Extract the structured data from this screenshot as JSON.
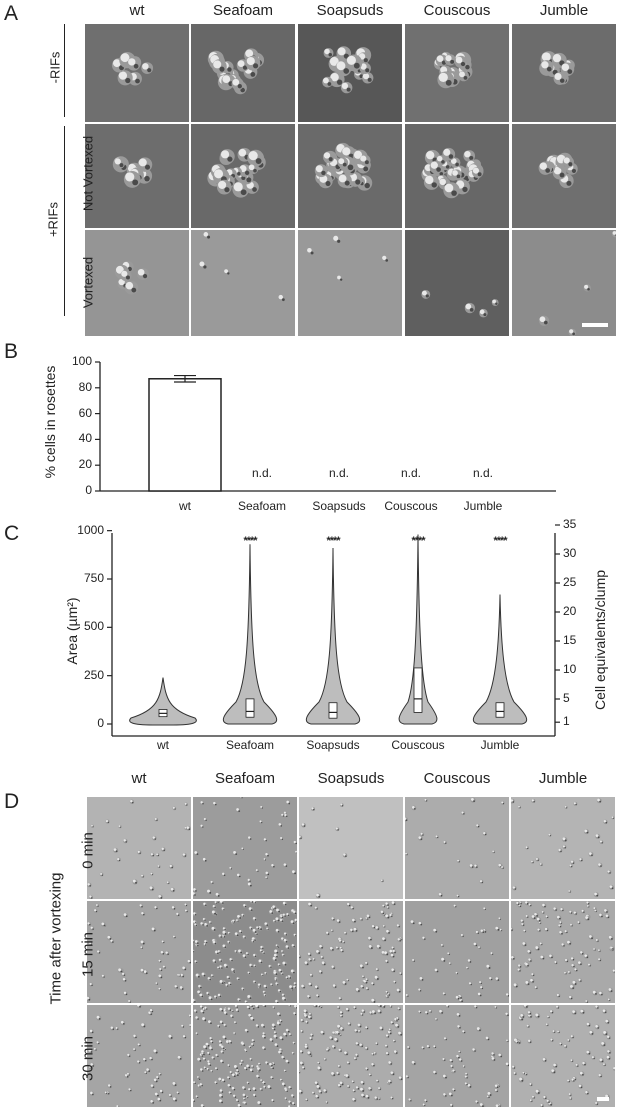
{
  "panelA": {
    "label": "A",
    "columns": [
      "wt",
      "Seafoam",
      "Soapsuds",
      "Couscous",
      "Jumble"
    ],
    "row_group_minus": "-RIFs",
    "row_group_plus": "+RIFs",
    "rows": [
      "Not Vortexed",
      "Vortexed"
    ]
  },
  "panelB": {
    "label": "B",
    "chart_data": {
      "type": "bar",
      "categories": [
        "wt",
        "Seafoam",
        "Soapsuds",
        "Couscous",
        "Jumble"
      ],
      "values": [
        87,
        null,
        null,
        null,
        null
      ],
      "error": [
        2.5,
        null,
        null,
        null,
        null
      ],
      "value_labels": [
        "",
        "n.d.",
        "n.d.",
        "n.d.",
        "n.d."
      ],
      "ylabel": "% cells in rosettes",
      "ylim": [
        0,
        100
      ],
      "yticks": [
        0,
        20,
        40,
        60,
        80,
        100
      ],
      "grid": false
    }
  },
  "panelC": {
    "label": "C",
    "chart_data": {
      "type": "violin",
      "categories": [
        "wt",
        "Seafoam",
        "Soapsuds",
        "Couscous",
        "Jumble"
      ],
      "ylabel": "Area (µm²)",
      "ylim": [
        0,
        1050
      ],
      "yticks": [
        0,
        250,
        500,
        750,
        1000
      ],
      "y2label": "Cell equivalents/clump",
      "y2ticks": [
        "1",
        "5",
        "10",
        "15",
        "20",
        "25",
        "30",
        "35"
      ],
      "y2tick_values": [
        30,
        150,
        300,
        450,
        600,
        750,
        900,
        1050
      ],
      "significance": [
        "",
        "****",
        "****",
        "****",
        "****"
      ],
      "series": [
        {
          "max": 240,
          "q1": 38,
          "median": 55,
          "q3": 75,
          "min": 20
        },
        {
          "max": 930,
          "q1": 35,
          "median": 65,
          "q3": 130,
          "min": 15
        },
        {
          "max": 910,
          "q1": 30,
          "median": 60,
          "q3": 110,
          "min": 15
        },
        {
          "max": 980,
          "q1": 60,
          "median": 130,
          "q3": 290,
          "min": 20
        },
        {
          "max": 670,
          "q1": 35,
          "median": 65,
          "q3": 110,
          "min": 15
        }
      ]
    }
  },
  "panelD": {
    "label": "D",
    "columns": [
      "wt",
      "Seafoam",
      "Soapsuds",
      "Couscous",
      "Jumble"
    ],
    "side_title": "Time after vortexing",
    "rows": [
      "0 min",
      "15 min",
      "30 min"
    ]
  }
}
